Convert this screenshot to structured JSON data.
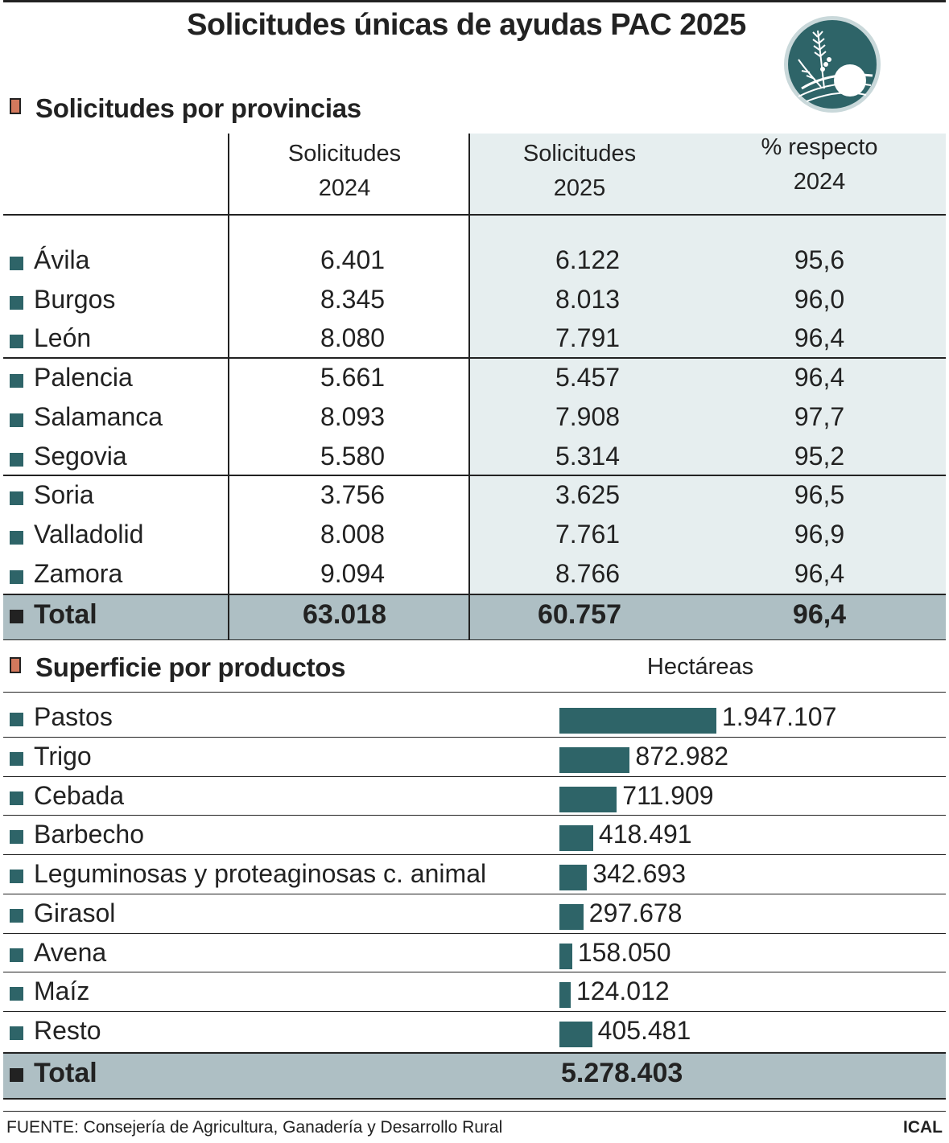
{
  "title": "Solicitudes únicas de ayudas PAC 2025",
  "colors": {
    "teal": "#2e6468",
    "band": "#aebfc4",
    "shade": "#e6eeef",
    "accent": "#d3795d"
  },
  "section1": {
    "heading": "Solicitudes por provincias",
    "columns": [
      {
        "line1": "Solicitudes",
        "line2": "2024"
      },
      {
        "line1": "Solicitudes",
        "line2": "2025"
      },
      {
        "line1": "% respecto",
        "line2": "2024"
      }
    ],
    "rows": [
      {
        "name": "Ávila",
        "y2024": "6.401",
        "y2025": "6.122",
        "pct": "95,6"
      },
      {
        "name": "Burgos",
        "y2024": "8.345",
        "y2025": "8.013",
        "pct": "96,0"
      },
      {
        "name": "León",
        "y2024": "8.080",
        "y2025": "7.791",
        "pct": "96,4"
      },
      {
        "name": "Palencia",
        "y2024": "5.661",
        "y2025": "5.457",
        "pct": "96,4"
      },
      {
        "name": "Salamanca",
        "y2024": "8.093",
        "y2025": "7.908",
        "pct": "97,7"
      },
      {
        "name": "Segovia",
        "y2024": "5.580",
        "y2025": "5.314",
        "pct": "95,2"
      },
      {
        "name": "Soria",
        "y2024": "3.756",
        "y2025": "3.625",
        "pct": "96,5"
      },
      {
        "name": "Valladolid",
        "y2024": "8.008",
        "y2025": "7.761",
        "pct": "96,9"
      },
      {
        "name": "Zamora",
        "y2024": "9.094",
        "y2025": "8.766",
        "pct": "96,4"
      }
    ],
    "total": {
      "name": "Total",
      "y2024": "63.018",
      "y2025": "60.757",
      "pct": "96,4"
    }
  },
  "section2": {
    "heading": "Superficie por productos",
    "unit": "Hectáreas",
    "total": {
      "name": "Total",
      "value": "5.278.403"
    }
  },
  "chart_data": {
    "type": "bar",
    "orientation": "horizontal",
    "categories": [
      "Pastos",
      "Trigo",
      "Cebada",
      "Barbecho",
      "Leguminosas y proteaginosas c. animal",
      "Girasol",
      "Avena",
      "Maíz",
      "Resto"
    ],
    "values": [
      1947107,
      872982,
      711909,
      418491,
      342693,
      297678,
      158050,
      124012,
      405481
    ],
    "labels": [
      "1.947.107",
      "872.982",
      "711.909",
      "418.491",
      "342.693",
      "297.678",
      "158.050",
      "124.012",
      "405.481"
    ],
    "ylabel": "Hectáreas",
    "title": "Superficie por productos"
  },
  "footer": {
    "source": "FUENTE: Consejería de Agricultura, Ganadería y Desarrollo Rural",
    "credit": "ICAL"
  }
}
